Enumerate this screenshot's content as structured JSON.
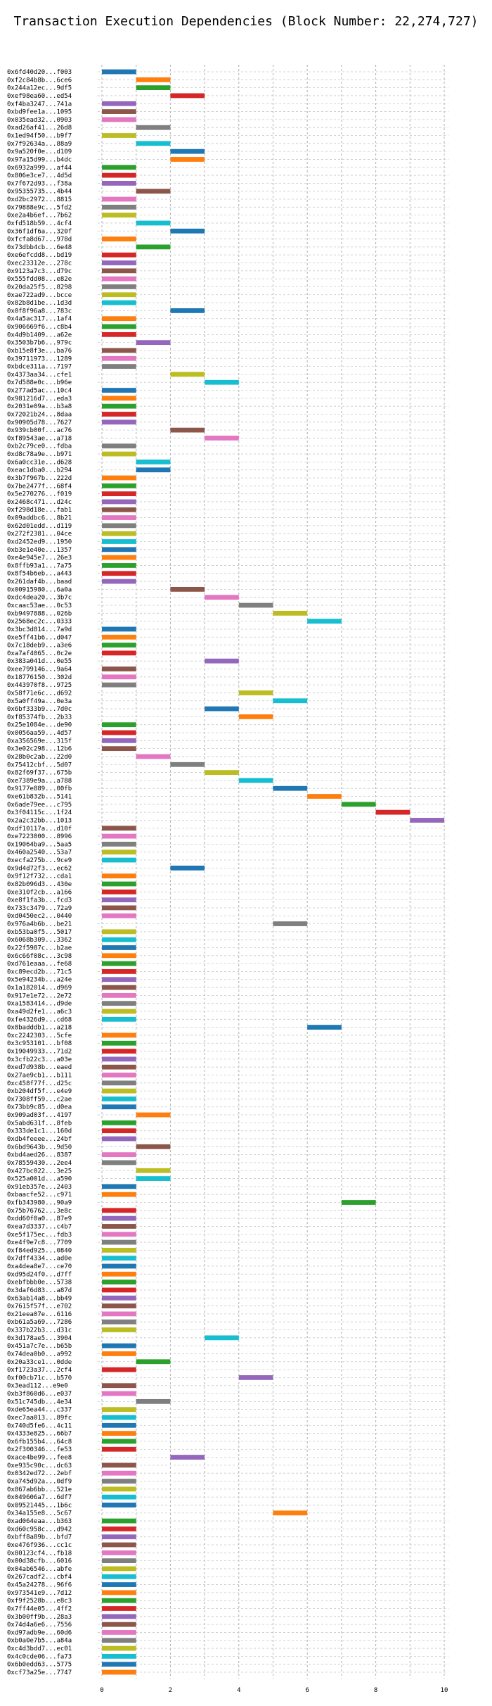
{
  "chart_data": {
    "type": "bar",
    "title": "Transaction Execution Dependencies (Block Number: 22,274,727)",
    "xlabel": "",
    "ylabel": "",
    "xlim": [
      0,
      10
    ],
    "xticks": [
      "0",
      "2",
      "4",
      "6",
      "8",
      "10"
    ],
    "grid": "on",
    "bar_height": 0.6,
    "palette": [
      "#1f77b4",
      "#ff7f0e",
      "#2ca02c",
      "#d62728",
      "#9467bd",
      "#8c564b",
      "#e377c2",
      "#7f7f7f",
      "#bcbd22",
      "#17becf"
    ],
    "transactions": [
      {
        "hash": "0x6fd40d20...f003",
        "start": 0,
        "end": 1
      },
      {
        "hash": "0xf2c84b8b...6ce6",
        "start": 1,
        "end": 2
      },
      {
        "hash": "0x244a12ec...9df5",
        "start": 1,
        "end": 2
      },
      {
        "hash": "0xef98ea60...ed54",
        "start": 2,
        "end": 3
      },
      {
        "hash": "0xf4ba3247...741a",
        "start": 0,
        "end": 1
      },
      {
        "hash": "0xbd9fee1a...1095",
        "start": 0,
        "end": 1
      },
      {
        "hash": "0x035ead32...0903",
        "start": 0,
        "end": 1
      },
      {
        "hash": "0xad26af41...26d8",
        "start": 1,
        "end": 2
      },
      {
        "hash": "0x1ed94f50...b9f7",
        "start": 0,
        "end": 1
      },
      {
        "hash": "0x7f92634a...88a9",
        "start": 1,
        "end": 2
      },
      {
        "hash": "0x9a520f0e...d109",
        "start": 2,
        "end": 3
      },
      {
        "hash": "0x97a15d99...b4dc",
        "start": 2,
        "end": 3
      },
      {
        "hash": "0x6932a999...af44",
        "start": 0,
        "end": 1
      },
      {
        "hash": "0x806e3ce7...4d5d",
        "start": 0,
        "end": 1
      },
      {
        "hash": "0x7f672d93...f38a",
        "start": 0,
        "end": 1
      },
      {
        "hash": "0x95355735...4b44",
        "start": 1,
        "end": 2
      },
      {
        "hash": "0xd2bc2972...8815",
        "start": 0,
        "end": 1
      },
      {
        "hash": "0x79888e9c...5fd2",
        "start": 0,
        "end": 1
      },
      {
        "hash": "0xe2a4b6ef...7b62",
        "start": 0,
        "end": 1
      },
      {
        "hash": "0xfd518b59...4cf4",
        "start": 1,
        "end": 2
      },
      {
        "hash": "0x36f1df6a...320f",
        "start": 2,
        "end": 3
      },
      {
        "hash": "0xfcfa8d67...978d",
        "start": 0,
        "end": 1
      },
      {
        "hash": "0x73dbb4cb...6e48",
        "start": 1,
        "end": 2
      },
      {
        "hash": "0xe6efcdd8...bd19",
        "start": 0,
        "end": 1
      },
      {
        "hash": "0xec23312e...278c",
        "start": 0,
        "end": 1
      },
      {
        "hash": "0x9123a7c3...d79c",
        "start": 0,
        "end": 1
      },
      {
        "hash": "0x555fdd08...e82e",
        "start": 0,
        "end": 1
      },
      {
        "hash": "0x20da25f5...8298",
        "start": 0,
        "end": 1
      },
      {
        "hash": "0xae722ad9...bcce",
        "start": 0,
        "end": 1
      },
      {
        "hash": "0x82b8d1be...1d3d",
        "start": 0,
        "end": 1
      },
      {
        "hash": "0x0f8f96a8...783c",
        "start": 2,
        "end": 3
      },
      {
        "hash": "0x4a5ac317...1af4",
        "start": 0,
        "end": 1
      },
      {
        "hash": "0x906669f6...c8b4",
        "start": 0,
        "end": 1
      },
      {
        "hash": "0x4d9b1409...a62e",
        "start": 0,
        "end": 1
      },
      {
        "hash": "0x3503b7b6...979c",
        "start": 1,
        "end": 2
      },
      {
        "hash": "0xb15e8f3e...ba76",
        "start": 0,
        "end": 1
      },
      {
        "hash": "0x39711973...1289",
        "start": 0,
        "end": 1
      },
      {
        "hash": "0xbdce311a...7197",
        "start": 0,
        "end": 1
      },
      {
        "hash": "0x4373aa34...cfe1",
        "start": 2,
        "end": 3
      },
      {
        "hash": "0x7d588e0c...b96e",
        "start": 3,
        "end": 4
      },
      {
        "hash": "0x277ad5ac...10c4",
        "start": 0,
        "end": 1
      },
      {
        "hash": "0x981216d7...eda3",
        "start": 0,
        "end": 1
      },
      {
        "hash": "0x2031e09a...b3a8",
        "start": 0,
        "end": 1
      },
      {
        "hash": "0x72021b24...8daa",
        "start": 0,
        "end": 1
      },
      {
        "hash": "0x90905d78...7627",
        "start": 0,
        "end": 1
      },
      {
        "hash": "0x939cb00f...ac76",
        "start": 2,
        "end": 3
      },
      {
        "hash": "0xf89543ae...a718",
        "start": 3,
        "end": 4
      },
      {
        "hash": "0xb2c79ce0...fdba",
        "start": 0,
        "end": 1
      },
      {
        "hash": "0xd8c78a9e...b971",
        "start": 0,
        "end": 1
      },
      {
        "hash": "0x6a0cc31e...d628",
        "start": 1,
        "end": 2
      },
      {
        "hash": "0xeac1dba0...b294",
        "start": 1,
        "end": 2
      },
      {
        "hash": "0x3b7f967b...222d",
        "start": 0,
        "end": 1
      },
      {
        "hash": "0x7be2477f...68f4",
        "start": 0,
        "end": 1
      },
      {
        "hash": "0x5e270276...f019",
        "start": 0,
        "end": 1
      },
      {
        "hash": "0x2468c471...d24c",
        "start": 0,
        "end": 1
      },
      {
        "hash": "0xf298d18e...fab1",
        "start": 0,
        "end": 1
      },
      {
        "hash": "0x09addbc6...8b21",
        "start": 0,
        "end": 1
      },
      {
        "hash": "0x62d01edd...d119",
        "start": 0,
        "end": 1
      },
      {
        "hash": "0x272f2381...04ce",
        "start": 0,
        "end": 1
      },
      {
        "hash": "0xd2452ed9...1950",
        "start": 0,
        "end": 1
      },
      {
        "hash": "0xb3e1e40e...1357",
        "start": 0,
        "end": 1
      },
      {
        "hash": "0xe4e945e7...26e3",
        "start": 0,
        "end": 1
      },
      {
        "hash": "0x8ffb93a1...7a75",
        "start": 0,
        "end": 1
      },
      {
        "hash": "0x8f54b6eb...a443",
        "start": 0,
        "end": 1
      },
      {
        "hash": "0x261daf4b...baad",
        "start": 0,
        "end": 1
      },
      {
        "hash": "0x00915980...6a0a",
        "start": 2,
        "end": 3
      },
      {
        "hash": "0xdc4dea20...3b7c",
        "start": 3,
        "end": 4
      },
      {
        "hash": "0xcaac53ae...0c53",
        "start": 4,
        "end": 5
      },
      {
        "hash": "0xb9497888...026b",
        "start": 5,
        "end": 6
      },
      {
        "hash": "0x2568ec2c...0333",
        "start": 6,
        "end": 7
      },
      {
        "hash": "0x3bc3d814...7a9d",
        "start": 0,
        "end": 1
      },
      {
        "hash": "0xe5ff41b6...d047",
        "start": 0,
        "end": 1
      },
      {
        "hash": "0x7c18deb9...a3e6",
        "start": 0,
        "end": 1
      },
      {
        "hash": "0xa7af4065...0c2e",
        "start": 0,
        "end": 1
      },
      {
        "hash": "0x383a041d...0e55",
        "start": 3,
        "end": 4
      },
      {
        "hash": "0xee799146...9a64",
        "start": 0,
        "end": 1
      },
      {
        "hash": "0x18776150...302d",
        "start": 0,
        "end": 1
      },
      {
        "hash": "0x443970f8...9725",
        "start": 0,
        "end": 1
      },
      {
        "hash": "0x58f71e6c...d692",
        "start": 4,
        "end": 5
      },
      {
        "hash": "0x5a0ff49a...0e3a",
        "start": 5,
        "end": 6
      },
      {
        "hash": "0x6bf333b9...7d0c",
        "start": 3,
        "end": 4
      },
      {
        "hash": "0xf85374fb...2b33",
        "start": 4,
        "end": 5
      },
      {
        "hash": "0x25e1084e...de90",
        "start": 0,
        "end": 1
      },
      {
        "hash": "0x0056aa59...4d57",
        "start": 0,
        "end": 1
      },
      {
        "hash": "0xa356569e...315f",
        "start": 0,
        "end": 1
      },
      {
        "hash": "0x3e02c298...12b6",
        "start": 0,
        "end": 1
      },
      {
        "hash": "0x28b0c2ab...22d0",
        "start": 1,
        "end": 2
      },
      {
        "hash": "0x75412cbf...5d07",
        "start": 2,
        "end": 3
      },
      {
        "hash": "0x82f69f37...675b",
        "start": 3,
        "end": 4
      },
      {
        "hash": "0xe7389e9a...a788",
        "start": 4,
        "end": 5
      },
      {
        "hash": "0x9177e889...00fb",
        "start": 5,
        "end": 6
      },
      {
        "hash": "0xe61b832b...5141",
        "start": 6,
        "end": 7
      },
      {
        "hash": "0x6ade79ee...c795",
        "start": 7,
        "end": 8
      },
      {
        "hash": "0x3f04115c...1f24",
        "start": 8,
        "end": 9
      },
      {
        "hash": "0x2a2c32bb...1013",
        "start": 9,
        "end": 10
      },
      {
        "hash": "0xdf10117a...d10f",
        "start": 0,
        "end": 1
      },
      {
        "hash": "0xe7223000...8996",
        "start": 0,
        "end": 1
      },
      {
        "hash": "0x19064ba9...5aa5",
        "start": 0,
        "end": 1
      },
      {
        "hash": "0x460a2540...53a7",
        "start": 0,
        "end": 1
      },
      {
        "hash": "0xecfa275b...9ce9",
        "start": 0,
        "end": 1
      },
      {
        "hash": "0x9d4d72f3...ec62",
        "start": 2,
        "end": 3
      },
      {
        "hash": "0x9f12f732...cda1",
        "start": 0,
        "end": 1
      },
      {
        "hash": "0x82b096d3...430e",
        "start": 0,
        "end": 1
      },
      {
        "hash": "0xe310f2cb...a166",
        "start": 0,
        "end": 1
      },
      {
        "hash": "0xe8f1fa3b...fcd3",
        "start": 0,
        "end": 1
      },
      {
        "hash": "0x733c3479...72a9",
        "start": 0,
        "end": 1
      },
      {
        "hash": "0xd0450ec2...0440",
        "start": 0,
        "end": 1
      },
      {
        "hash": "0x976a4b6b...be21",
        "start": 5,
        "end": 6
      },
      {
        "hash": "0xb53ba0f5...5017",
        "start": 0,
        "end": 1
      },
      {
        "hash": "0x6068b309...3362",
        "start": 0,
        "end": 1
      },
      {
        "hash": "0x22f5987c...b2ae",
        "start": 0,
        "end": 1
      },
      {
        "hash": "0x6c66f08c...3c98",
        "start": 0,
        "end": 1
      },
      {
        "hash": "0xd761eaaa...fe68",
        "start": 0,
        "end": 1
      },
      {
        "hash": "0xc89ecd2b...71c5",
        "start": 0,
        "end": 1
      },
      {
        "hash": "0x5e94234b...a24e",
        "start": 0,
        "end": 1
      },
      {
        "hash": "0x1a182014...d969",
        "start": 0,
        "end": 1
      },
      {
        "hash": "0x917e1e72...2e72",
        "start": 0,
        "end": 1
      },
      {
        "hash": "0xa1583414...d9de",
        "start": 0,
        "end": 1
      },
      {
        "hash": "0xa49d2fe1...a6c3",
        "start": 0,
        "end": 1
      },
      {
        "hash": "0xfe4326d9...cd68",
        "start": 0,
        "end": 1
      },
      {
        "hash": "0x8badddb1...a218",
        "start": 6,
        "end": 7
      },
      {
        "hash": "0xc2242303...5cfe",
        "start": 0,
        "end": 1
      },
      {
        "hash": "0x3c953101...bf08",
        "start": 0,
        "end": 1
      },
      {
        "hash": "0x19049933...71d2",
        "start": 0,
        "end": 1
      },
      {
        "hash": "0x3cfb22c3...a03e",
        "start": 0,
        "end": 1
      },
      {
        "hash": "0xed7d938b...eaed",
        "start": 0,
        "end": 1
      },
      {
        "hash": "0x27ae9cb1...b111",
        "start": 0,
        "end": 1
      },
      {
        "hash": "0xc458f77f...d25c",
        "start": 0,
        "end": 1
      },
      {
        "hash": "0xb204df5f...e4e9",
        "start": 0,
        "end": 1
      },
      {
        "hash": "0x7308ff59...c2ae",
        "start": 0,
        "end": 1
      },
      {
        "hash": "0x73bb9c85...d0ea",
        "start": 0,
        "end": 1
      },
      {
        "hash": "0x909ad03f...4197",
        "start": 1,
        "end": 2
      },
      {
        "hash": "0x5abd631f...8feb",
        "start": 0,
        "end": 1
      },
      {
        "hash": "0x333de1c1...160d",
        "start": 0,
        "end": 1
      },
      {
        "hash": "0xdb4feeee...24bf",
        "start": 0,
        "end": 1
      },
      {
        "hash": "0x6bd9643b...9d50",
        "start": 1,
        "end": 2
      },
      {
        "hash": "0xbd4aed26...8387",
        "start": 0,
        "end": 1
      },
      {
        "hash": "0x78559430...2ee4",
        "start": 0,
        "end": 1
      },
      {
        "hash": "0x427bc022...3e25",
        "start": 1,
        "end": 2
      },
      {
        "hash": "0x525a001d...a590",
        "start": 1,
        "end": 2
      },
      {
        "hash": "0x91eb357e...2403",
        "start": 0,
        "end": 1
      },
      {
        "hash": "0xbaacfe52...c971",
        "start": 0,
        "end": 1
      },
      {
        "hash": "0xfb343980...90a9",
        "start": 7,
        "end": 8
      },
      {
        "hash": "0x75b76762...3e8c",
        "start": 0,
        "end": 1
      },
      {
        "hash": "0xdd60f0a0...87e9",
        "start": 0,
        "end": 1
      },
      {
        "hash": "0xea7d3337...c4b7",
        "start": 0,
        "end": 1
      },
      {
        "hash": "0xe5f175ec...fdb3",
        "start": 0,
        "end": 1
      },
      {
        "hash": "0xe4f9e7c8...7709",
        "start": 0,
        "end": 1
      },
      {
        "hash": "0xf84ed925...0840",
        "start": 0,
        "end": 1
      },
      {
        "hash": "0x7dff4334...ad0e",
        "start": 0,
        "end": 1
      },
      {
        "hash": "0xa4dea8e7...ce70",
        "start": 0,
        "end": 1
      },
      {
        "hash": "0xd95d24f0...d7ff",
        "start": 0,
        "end": 1
      },
      {
        "hash": "0xebfbbb0e...5738",
        "start": 0,
        "end": 1
      },
      {
        "hash": "0x3daf6d83...a87d",
        "start": 0,
        "end": 1
      },
      {
        "hash": "0x63ab14a8...bb49",
        "start": 0,
        "end": 1
      },
      {
        "hash": "0x7615f57f...e702",
        "start": 0,
        "end": 1
      },
      {
        "hash": "0x21eea07e...6116",
        "start": 0,
        "end": 1
      },
      {
        "hash": "0xb61a5a69...7286",
        "start": 0,
        "end": 1
      },
      {
        "hash": "0x337b22b3...d31c",
        "start": 0,
        "end": 1
      },
      {
        "hash": "0x3d178ae5...3904",
        "start": 3,
        "end": 4
      },
      {
        "hash": "0x451a7c7e...b65b",
        "start": 0,
        "end": 1
      },
      {
        "hash": "0x74dea0b0...a992",
        "start": 0,
        "end": 1
      },
      {
        "hash": "0x20a33ce1...0dde",
        "start": 1,
        "end": 2
      },
      {
        "hash": "0xf1723a37...2cf4",
        "start": 0,
        "end": 1
      },
      {
        "hash": "0xf00cb71c...b570",
        "start": 4,
        "end": 5
      },
      {
        "hash": "0x3ead112...e9e0",
        "start": 0,
        "end": 1
      },
      {
        "hash": "0xb3f860d6...e037",
        "start": 0,
        "end": 1
      },
      {
        "hash": "0x51c745db...4e34",
        "start": 1,
        "end": 2
      },
      {
        "hash": "0xde65ea44...c337",
        "start": 0,
        "end": 1
      },
      {
        "hash": "0xec7aa013...89fc",
        "start": 0,
        "end": 1
      },
      {
        "hash": "0x740d5fe6...4c11",
        "start": 0,
        "end": 1
      },
      {
        "hash": "0x4333e825...66b7",
        "start": 0,
        "end": 1
      },
      {
        "hash": "0x6fb155b4...64c8",
        "start": 0,
        "end": 1
      },
      {
        "hash": "0x2f300346...fe53",
        "start": 0,
        "end": 1
      },
      {
        "hash": "0xace4be99...fee8",
        "start": 2,
        "end": 3
      },
      {
        "hash": "0xe935c90c...dc63",
        "start": 0,
        "end": 1
      },
      {
        "hash": "0x0342ed72...2ebf",
        "start": 0,
        "end": 1
      },
      {
        "hash": "0xa745d92a...0df9",
        "start": 0,
        "end": 1
      },
      {
        "hash": "0x867ab6bb...521e",
        "start": 0,
        "end": 1
      },
      {
        "hash": "0x049606a7...6df7",
        "start": 0,
        "end": 1
      },
      {
        "hash": "0x09521445...1b6c",
        "start": 0,
        "end": 1
      },
      {
        "hash": "0x34a155e8...5c67",
        "start": 5,
        "end": 6
      },
      {
        "hash": "0xad064eaa...b363",
        "start": 0,
        "end": 1
      },
      {
        "hash": "0xd60c958c...d942",
        "start": 0,
        "end": 1
      },
      {
        "hash": "0xbff8a89b...bfd7",
        "start": 0,
        "end": 1
      },
      {
        "hash": "0xe476f936...cc1c",
        "start": 0,
        "end": 1
      },
      {
        "hash": "0x80123cf4...fb18",
        "start": 0,
        "end": 1
      },
      {
        "hash": "0x00d38cfb...6016",
        "start": 0,
        "end": 1
      },
      {
        "hash": "0x04ab6546...abfe",
        "start": 0,
        "end": 1
      },
      {
        "hash": "0x267cadf2...cbf4",
        "start": 0,
        "end": 1
      },
      {
        "hash": "0x45a24278...96f6",
        "start": 0,
        "end": 1
      },
      {
        "hash": "0x973541e9...7d12",
        "start": 0,
        "end": 1
      },
      {
        "hash": "0xf9f2528b...e8c3",
        "start": 0,
        "end": 1
      },
      {
        "hash": "0x7ff44e05...4ff2",
        "start": 0,
        "end": 1
      },
      {
        "hash": "0x3b00ff9b...28a3",
        "start": 0,
        "end": 1
      },
      {
        "hash": "0x74d4a6e6...7556",
        "start": 0,
        "end": 1
      },
      {
        "hash": "0xd97adb9e...60d6",
        "start": 0,
        "end": 1
      },
      {
        "hash": "0xb0a0e7b5...a84a",
        "start": 0,
        "end": 1
      },
      {
        "hash": "0xc4d3bdd7...ec01",
        "start": 0,
        "end": 1
      },
      {
        "hash": "0x4c0cde06...fa73",
        "start": 0,
        "end": 1
      },
      {
        "hash": "0x6b0edd63...5775",
        "start": 0,
        "end": 1
      },
      {
        "hash": "0xcf73a25e...7747",
        "start": 0,
        "end": 1
      }
    ]
  }
}
